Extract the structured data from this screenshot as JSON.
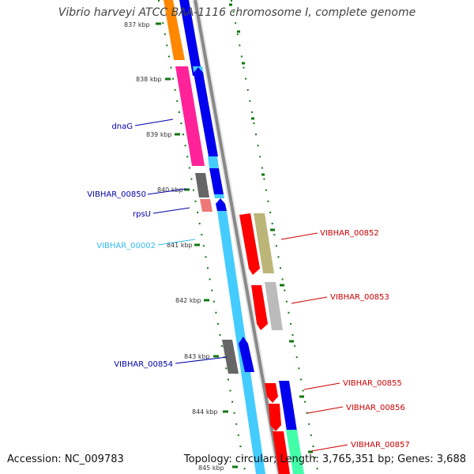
{
  "title": "Vibrio harveyi ATCC BAA-1116 chromosome I, complete genome",
  "footer": {
    "accession": "Accession: NC_009783",
    "summary": "Topology: circular; Length: 3,765,351 bp; Genes: 3,688"
  },
  "colors": {
    "tick": "#117711",
    "left_labels": "#0000aa",
    "right_labels": "#cc0000",
    "cyan_label": "#33bbee",
    "backbone_grey": "#888888",
    "backbone_light": "#cccccc",
    "cds_blue": "#0000ee",
    "cds_cyan": "#44ccff",
    "gene_red": "#ff0000",
    "gene_orange": "#ff8800",
    "gene_pink": "#ff2299",
    "gene_grey": "#666666",
    "gene_salmon": "#ee7777",
    "gene_khaki": "#bbb677",
    "gene_lightgrey": "#bbbbbb",
    "gene_mint": "#44ffaa"
  },
  "ruler_labels": [
    "837 kbp",
    "838 kbp",
    "839 kbp",
    "840 kbp",
    "841 kbp",
    "842 kbp",
    "843 kbp",
    "844 kbp",
    "845 kbp"
  ],
  "left_labels": [
    {
      "text": "dnaG",
      "color": "#0000aa"
    },
    {
      "text": "VIBHAR_00850",
      "color": "#0000aa"
    },
    {
      "text": "rpsU",
      "color": "#0000aa"
    },
    {
      "text": "VIBHAR_00002",
      "color": "#33bbee"
    },
    {
      "text": "VIBHAR_00854",
      "color": "#0000aa"
    }
  ],
  "right_labels": [
    {
      "text": "VIBHAR_00852"
    },
    {
      "text": "VIBHAR_00853"
    },
    {
      "text": "VIBHAR_00855"
    },
    {
      "text": "VIBHAR_00856"
    },
    {
      "text": "VIBHAR_00857"
    }
  ]
}
